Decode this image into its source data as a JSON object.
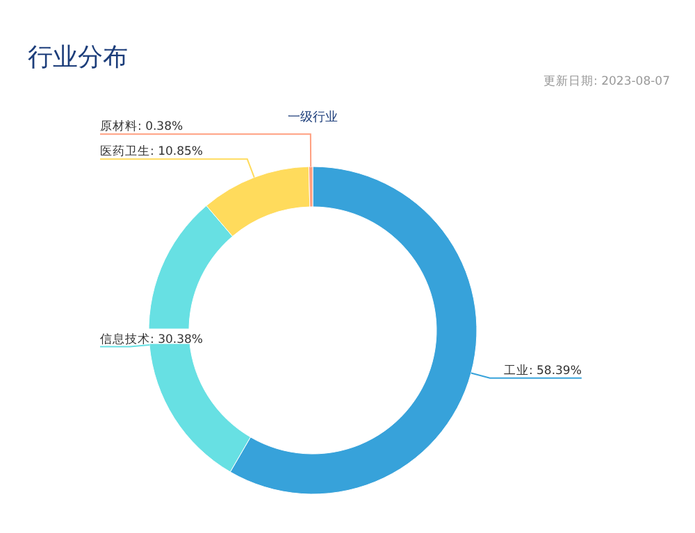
{
  "chart_data": {
    "type": "donut",
    "title": "行业分布",
    "subtitle": "一级行业",
    "annotations": [
      "更新日期: 2023-08-07"
    ],
    "categories": [
      "工业",
      "信息技术",
      "医药卫生",
      "原材料"
    ],
    "values": [
      58.39,
      30.38,
      10.85,
      0.38
    ],
    "value_labels": [
      "58.39%",
      "30.38%",
      "10.85%",
      "0.38%"
    ],
    "colors": [
      "#37a2da",
      "#67e0e3",
      "#ffdb5c",
      "#ff9f7f"
    ]
  }
}
